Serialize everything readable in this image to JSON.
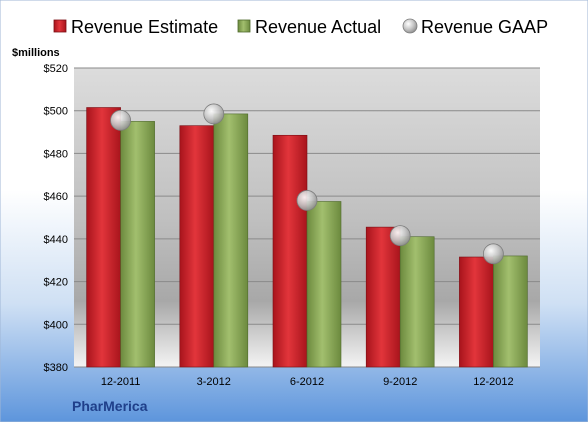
{
  "chart_data": {
    "type": "bar",
    "title": "",
    "ylabel": "$millions",
    "xlabel": "",
    "categories": [
      "12-2011",
      "3-2012",
      "6-2012",
      "9-2012",
      "12-2012"
    ],
    "series": [
      {
        "name": "Revenue Estimate",
        "kind": "bar",
        "color": "#c8202a",
        "values": [
          501.5,
          493,
          488.5,
          445.5,
          431.5
        ]
      },
      {
        "name": "Revenue Actual",
        "kind": "bar",
        "color": "#8aa85a",
        "values": [
          495,
          498.5,
          457.5,
          441,
          432
        ]
      },
      {
        "name": "Revenue GAAP",
        "kind": "marker",
        "color": "#b8b8b8",
        "values": [
          495.5,
          498.5,
          458,
          441.5,
          433
        ]
      }
    ],
    "ylim": [
      380,
      520
    ],
    "yticks": [
      "$380",
      "$400",
      "$420",
      "$440",
      "$460",
      "$480",
      "$500",
      "$520"
    ],
    "ytick_values": [
      380,
      400,
      420,
      440,
      460,
      480,
      500,
      520
    ],
    "grid": true,
    "legend_position": "top",
    "watermark": "PharMerica"
  }
}
